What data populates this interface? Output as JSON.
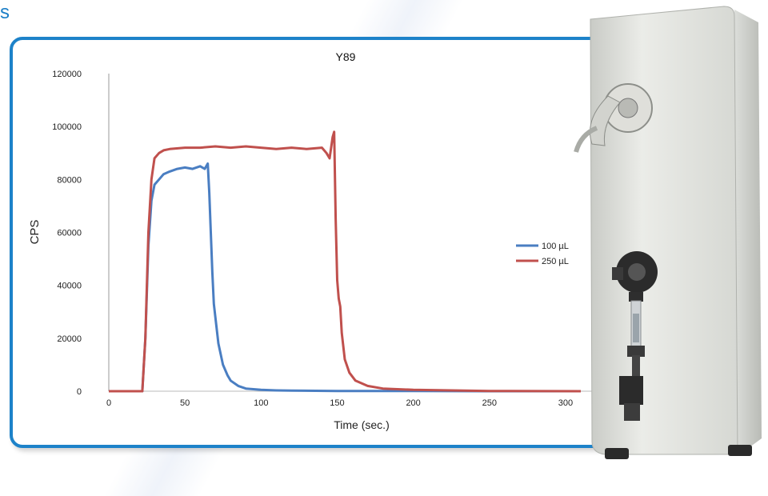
{
  "header": {
    "partial_title": "s"
  },
  "chart_data": {
    "type": "line",
    "title": "Y89",
    "xlabel": "Time (sec.)",
    "ylabel": "CPS",
    "xlim": [
      0,
      320
    ],
    "ylim": [
      0,
      120000
    ],
    "x_ticks": [
      0,
      50,
      100,
      150,
      200,
      250,
      300
    ],
    "y_ticks": [
      0,
      20000,
      40000,
      60000,
      80000,
      100000,
      120000
    ],
    "grid": false,
    "legend_position": "right",
    "series": [
      {
        "name": "100 µL",
        "color": "#4a7ec2",
        "x": [
          0,
          10,
          20,
          22,
          24,
          26,
          28,
          30,
          33,
          36,
          40,
          45,
          50,
          55,
          60,
          63,
          65,
          66,
          67,
          68,
          69,
          70,
          72,
          75,
          78,
          80,
          85,
          90,
          100,
          110,
          120,
          150,
          200,
          250,
          310
        ],
        "y": [
          0,
          0,
          0,
          0,
          20000,
          55000,
          72000,
          78000,
          80000,
          82000,
          83000,
          84000,
          84500,
          84000,
          85000,
          84000,
          86000,
          75000,
          60000,
          45000,
          33000,
          28000,
          18000,
          10000,
          6000,
          4000,
          2000,
          1000,
          500,
          300,
          200,
          100,
          50,
          0,
          0
        ]
      },
      {
        "name": "250 µL",
        "color": "#c0504d",
        "x": [
          0,
          10,
          20,
          22,
          24,
          26,
          28,
          30,
          33,
          36,
          40,
          50,
          60,
          70,
          80,
          90,
          100,
          110,
          120,
          130,
          140,
          143,
          145,
          147,
          148,
          149,
          150,
          151,
          152,
          153,
          155,
          158,
          162,
          170,
          180,
          200,
          250,
          310
        ],
        "y": [
          0,
          0,
          0,
          0,
          20000,
          60000,
          80000,
          88000,
          90000,
          91000,
          91500,
          92000,
          92000,
          92500,
          92000,
          92500,
          92000,
          91500,
          92000,
          91500,
          92000,
          90000,
          88000,
          96000,
          98000,
          65000,
          42000,
          35000,
          32000,
          22000,
          12000,
          7000,
          4000,
          2000,
          1000,
          500,
          100,
          0
        ]
      }
    ]
  },
  "device": {
    "body_color": "#e2e4e0"
  }
}
